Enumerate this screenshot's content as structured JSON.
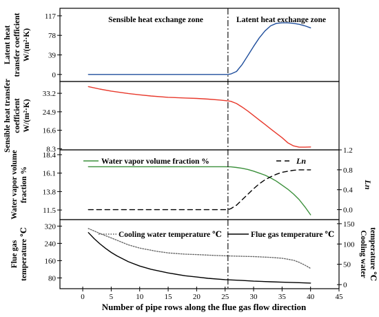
{
  "chart_data": {
    "type": "line",
    "x_axis": {
      "label": "Number of pipe rows along the flue gas flow direction",
      "ticks": [
        0,
        5,
        10,
        15,
        20,
        25,
        30,
        35,
        40,
        45
      ],
      "range": [
        -4,
        45
      ]
    },
    "zones": {
      "divider_x": 25.5,
      "sensible_label": "Sensible heat exchange zone",
      "latent_label": "Latent heat exchange zone"
    },
    "panels": [
      {
        "id": "latent",
        "ylabel_lines": [
          "Latent heat",
          "transfer coefficient",
          "W/(m²·K)"
        ],
        "yticks": [
          0,
          39,
          78,
          117
        ],
        "ylim": [
          -14,
          132
        ],
        "series": [
          {
            "color": "#1f4e9c",
            "dash": "",
            "x": [
              1,
              5,
              10,
              15,
              20,
              25,
              25.5,
              26,
              27,
              28,
              29,
              30,
              31,
              32,
              33,
              34,
              35,
              36,
              37,
              38,
              39,
              40
            ],
            "y": [
              0,
              0,
              0,
              0,
              0,
              0,
              0,
              1,
              6,
              20,
              38,
              56,
              73,
              87,
              97,
              102,
              103,
              103,
              102,
              100,
              97,
              93
            ]
          }
        ]
      },
      {
        "id": "sensible",
        "ylabel_lines": [
          "Sensible heat transfer",
          "coefficient",
          "W/(m²·K)"
        ],
        "yticks": [
          8.3,
          16.6,
          24.9,
          33.2
        ],
        "ylim": [
          7.8,
          38.5
        ],
        "series": [
          {
            "color": "#e8382b",
            "dash": "",
            "x": [
              1,
              3,
              5,
              8,
              10,
              12,
              15,
              18,
              20,
              22,
              24,
              25.5,
              26,
              27,
              28,
              29,
              30,
              31,
              32,
              33,
              34,
              35,
              36,
              37,
              38,
              39,
              40
            ],
            "y": [
              36.2,
              35.1,
              34.2,
              33.1,
              32.5,
              32.0,
              31.4,
              31.1,
              30.9,
              30.6,
              30.2,
              29.8,
              29.6,
              28.6,
              27.0,
              25.2,
              23.2,
              21.2,
              19.2,
              17.2,
              15.2,
              13.3,
              11.0,
              9.6,
              9.0,
              9.0,
              9.1
            ]
          }
        ]
      },
      {
        "id": "vapor",
        "ylabel_lines": [
          "Water vapor volume",
          "fraction %"
        ],
        "yticks": [
          11.5,
          13.8,
          16.1,
          18.4
        ],
        "ylim": [
          10.3,
          19.0
        ],
        "right_axis": {
          "label": "Ln",
          "ticks": [
            0.0,
            0.4,
            0.8,
            1.2
          ],
          "tick_labels": [
            "0.0",
            "0.4",
            "0.8",
            "1.2"
          ],
          "ylim": [
            -0.2,
            1.2
          ]
        },
        "legend": [
          {
            "label": "Water vapor volume fraction %",
            "color": "#3a8f3a",
            "dash": ""
          },
          {
            "label": "Ln",
            "color": "#000000",
            "dash": "7,5"
          }
        ],
        "series": [
          {
            "axis": "left",
            "color": "#3a8f3a",
            "dash": "",
            "x": [
              1,
              5,
              10,
              15,
              20,
              25,
              26,
              27,
              28,
              29,
              30,
              31,
              32,
              33,
              34,
              35,
              36,
              37,
              38,
              39,
              40
            ],
            "y": [
              16.9,
              16.9,
              16.9,
              16.9,
              16.9,
              16.9,
              16.88,
              16.8,
              16.7,
              16.55,
              16.35,
              16.1,
              15.85,
              15.5,
              15.1,
              14.6,
              14.1,
              13.5,
              12.8,
              11.9,
              10.9
            ]
          },
          {
            "axis": "right",
            "color": "#000000",
            "dash": "7,5",
            "x": [
              1,
              5,
              10,
              15,
              20,
              25,
              25.5,
              26,
              27,
              28,
              29,
              30,
              31,
              32,
              33,
              34,
              35,
              36,
              37,
              38,
              39,
              40
            ],
            "y": [
              0.0,
              0.0,
              0.0,
              0.0,
              0.0,
              0.0,
              0.0,
              0.02,
              0.09,
              0.2,
              0.31,
              0.42,
              0.52,
              0.6,
              0.66,
              0.71,
              0.75,
              0.77,
              0.79,
              0.8,
              0.8,
              0.8
            ]
          }
        ]
      },
      {
        "id": "temperature",
        "ylabel_lines": [
          "Flue gas",
          "temperature ℃"
        ],
        "yticks": [
          80,
          160,
          240,
          320
        ],
        "ylim": [
          30,
          350
        ],
        "right_axis": {
          "label_lines": [
            "Cooling water",
            "temperature ℃"
          ],
          "ticks": [
            0,
            50,
            100,
            150
          ],
          "tick_labels": [
            "0",
            "50",
            "100",
            "150"
          ],
          "ylim": [
            -10,
            160
          ]
        },
        "legend": [
          {
            "label": "Cooling water temperature ℃",
            "color": "#555555",
            "dash": "1.5,2"
          },
          {
            "label": "Flue gas temperature ℃",
            "color": "#000000",
            "dash": ""
          }
        ],
        "series": [
          {
            "axis": "right",
            "color": "#666666",
            "dash": "1.5,2",
            "x": [
              1,
              3,
              5,
              8,
              10,
              13,
              15,
              18,
              20,
              23,
              25,
              27,
              30,
              33,
              35,
              37,
              38,
              39,
              40
            ],
            "y": [
              138,
              126,
              115,
              98,
              90,
              82,
              78,
              75,
              74,
              72,
              71,
              70,
              69,
              67,
              65,
              60,
              55,
              48,
              40
            ]
          },
          {
            "axis": "left",
            "color": "#000000",
            "dash": "",
            "x": [
              1,
              2,
              3,
              4,
              5,
              6,
              8,
              10,
              12,
              15,
              18,
              20,
              22,
              25,
              28,
              30,
              33,
              35,
              38,
              40
            ],
            "y": [
              290,
              262,
              238,
              217,
              198,
              182,
              155,
              135,
              120,
              103,
              90,
              84,
              78,
              72,
              68,
              65,
              62,
              60,
              58,
              56
            ]
          }
        ]
      }
    ]
  }
}
